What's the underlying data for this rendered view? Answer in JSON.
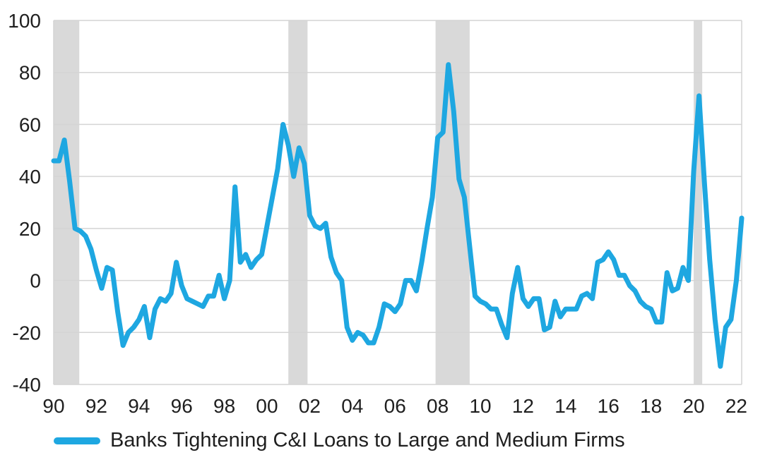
{
  "chart_data": {
    "type": "line",
    "title": "",
    "xlabel": "",
    "ylabel": "",
    "ylim": [
      -40,
      100
    ],
    "grid": true,
    "legend_position": "bottom-left",
    "x_tick_labels": [
      "90",
      "92",
      "94",
      "96",
      "98",
      "00",
      "02",
      "04",
      "06",
      "08",
      "10",
      "12",
      "14",
      "16",
      "18",
      "20",
      "22"
    ],
    "x_tick_years": [
      1990,
      1992,
      1994,
      1996,
      1998,
      2000,
      2002,
      2004,
      2006,
      2008,
      2010,
      2012,
      2014,
      2016,
      2018,
      2020,
      2022
    ],
    "y_ticks": [
      -40,
      -20,
      0,
      20,
      40,
      60,
      80,
      100
    ],
    "recessions": [
      {
        "start": 1990.0,
        "end": 1991.2
      },
      {
        "start": 2001.0,
        "end": 2001.9
      },
      {
        "start": 2007.9,
        "end": 2009.5
      },
      {
        "start": 2020.0,
        "end": 2020.4
      }
    ],
    "series": [
      {
        "name": "Banks Tightening C&I Loans to Large and Medium Firms",
        "color": "#1ea7e1",
        "x": [
          1990.0,
          1990.25,
          1990.5,
          1990.75,
          1991.0,
          1991.25,
          1991.5,
          1991.75,
          1992.0,
          1992.25,
          1992.5,
          1992.75,
          1993.0,
          1993.25,
          1993.5,
          1993.75,
          1994.0,
          1994.25,
          1994.5,
          1994.75,
          1995.0,
          1995.25,
          1995.5,
          1995.75,
          1996.0,
          1996.25,
          1996.5,
          1996.75,
          1997.0,
          1997.25,
          1997.5,
          1997.75,
          1998.0,
          1998.25,
          1998.5,
          1998.75,
          1999.0,
          1999.25,
          1999.5,
          1999.75,
          2000.0,
          2000.25,
          2000.5,
          2000.75,
          2001.0,
          2001.25,
          2001.5,
          2001.75,
          2002.0,
          2002.25,
          2002.5,
          2002.75,
          2003.0,
          2003.25,
          2003.5,
          2003.75,
          2004.0,
          2004.25,
          2004.5,
          2004.75,
          2005.0,
          2005.25,
          2005.5,
          2005.75,
          2006.0,
          2006.25,
          2006.5,
          2006.75,
          2007.0,
          2007.25,
          2007.5,
          2007.75,
          2008.0,
          2008.25,
          2008.5,
          2008.75,
          2009.0,
          2009.25,
          2009.5,
          2009.75,
          2010.0,
          2010.25,
          2010.5,
          2010.75,
          2011.0,
          2011.25,
          2011.5,
          2011.75,
          2012.0,
          2012.25,
          2012.5,
          2012.75,
          2013.0,
          2013.25,
          2013.5,
          2013.75,
          2014.0,
          2014.25,
          2014.5,
          2014.75,
          2015.0,
          2015.25,
          2015.5,
          2015.75,
          2016.0,
          2016.25,
          2016.5,
          2016.75,
          2017.0,
          2017.25,
          2017.5,
          2017.75,
          2018.0,
          2018.25,
          2018.5,
          2018.75,
          2019.0,
          2019.25,
          2019.5,
          2019.75,
          2020.0,
          2020.25,
          2020.5,
          2020.75,
          2021.0,
          2021.25,
          2021.5,
          2021.75,
          2022.0,
          2022.25
        ],
        "values": [
          46,
          46,
          54,
          38,
          20,
          19,
          17,
          12,
          4,
          -3,
          5,
          4,
          -12,
          -25,
          -20,
          -18,
          -15,
          -10,
          -22,
          -11,
          -7,
          -8,
          -5,
          7,
          -2,
          -7,
          -8,
          -9,
          -10,
          -6,
          -6,
          2,
          -7,
          0,
          36,
          7,
          10,
          5,
          8,
          10,
          21,
          32,
          43,
          60,
          52,
          40,
          51,
          45,
          25,
          21,
          20,
          22,
          9,
          3,
          0,
          -18,
          -23,
          -20,
          -21,
          -24,
          -24,
          -18,
          -9,
          -10,
          -12,
          -9,
          0,
          0,
          -4,
          7,
          20,
          32,
          55,
          57,
          83,
          65,
          39,
          32,
          13,
          -6,
          -8,
          -9,
          -11,
          -11,
          -17,
          -22,
          -5,
          5,
          -7,
          -10,
          -7,
          -7,
          -19,
          -18,
          -8,
          -14,
          -11,
          -11,
          -11,
          -6,
          -5,
          -7,
          7,
          8,
          11,
          8,
          2,
          2,
          -2,
          -4,
          -8,
          -10,
          -11,
          -16,
          -16,
          3,
          -4,
          -3,
          5,
          0,
          42,
          71,
          38,
          8,
          -15,
          -33,
          -18,
          -15,
          0,
          24
        ]
      }
    ]
  }
}
